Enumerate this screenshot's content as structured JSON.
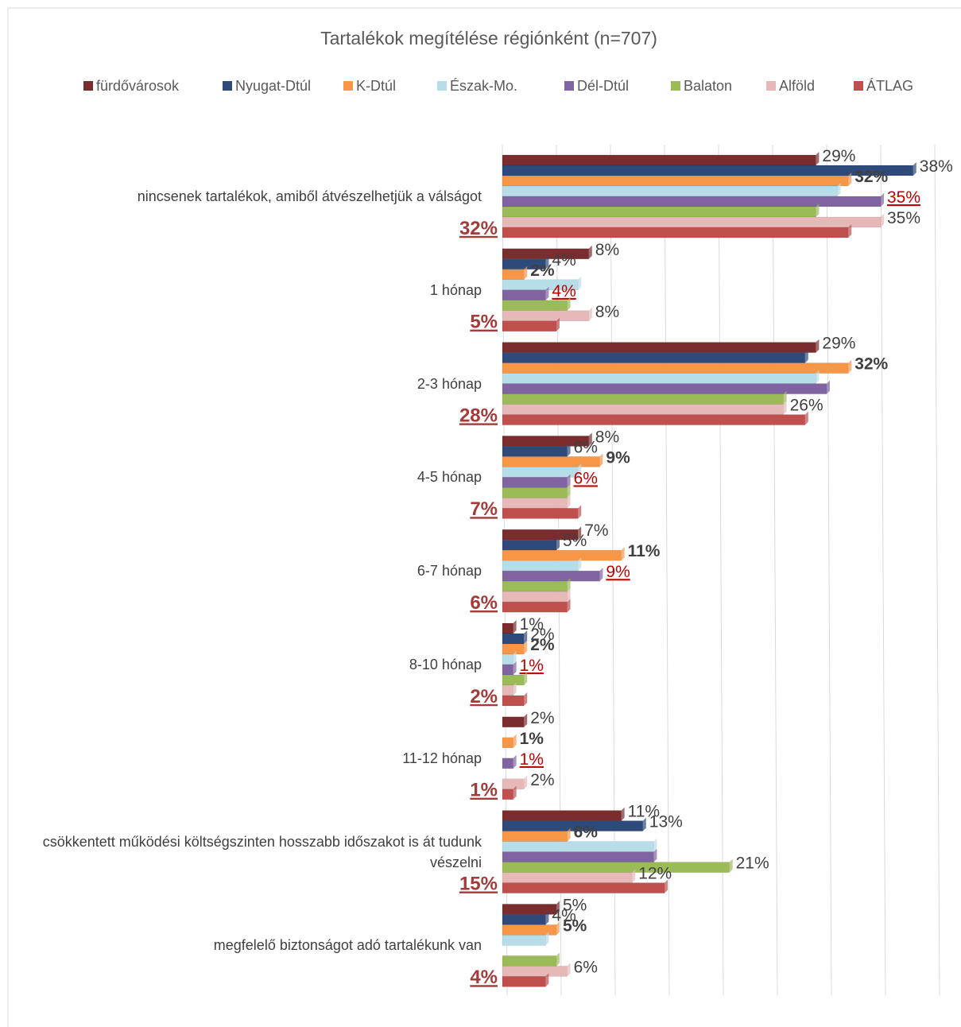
{
  "chart_data": {
    "type": "bar",
    "orientation": "horizontal",
    "title": "Tartalékok megítélése régiónként (n=707)",
    "categories": [
      "nincsenek tartalékok, amiből átvészelhetjük a válságot",
      "1 hónap",
      "2-3 hónap",
      "4-5 hónap",
      "6-7 hónap",
      "8-10 hónap",
      "11-12 hónap",
      "csökkentett működési költségszinten hosszabb időszakot is át tudunk vészelni",
      "megfelelő biztonságot adó tartalékunk van"
    ],
    "series": [
      {
        "name": "fürdővárosok",
        "color": "#7b2c2c",
        "values": [
          29,
          8,
          29,
          8,
          7,
          1,
          2,
          11,
          5
        ],
        "value_labels": [
          "29%",
          "8%",
          "29%",
          "8%",
          "7%",
          "1%",
          "2%",
          "11%",
          "5%"
        ]
      },
      {
        "name": "Nyugat-Dtúl",
        "color": "#2e4a7a",
        "values": [
          38,
          4,
          28,
          6,
          5,
          2,
          0,
          13,
          4
        ],
        "value_labels": [
          "38%",
          "4%",
          null,
          "6%",
          "5%",
          "2%",
          null,
          "13%",
          "4%"
        ]
      },
      {
        "name": "K-Dtúl",
        "color": "#f79646",
        "values": [
          32,
          2,
          32,
          9,
          11,
          2,
          1,
          6,
          5
        ],
        "value_labels": [
          "32%",
          "2%",
          "32%",
          "9%",
          "11%",
          "2%",
          "1%",
          "6%",
          "5%"
        ]
      },
      {
        "name": "Észak-Mo.",
        "color": "#b7dde8",
        "values": [
          31,
          7,
          29,
          7,
          7,
          1,
          0,
          14,
          4
        ],
        "value_labels": [
          null,
          null,
          null,
          null,
          null,
          null,
          null,
          null,
          null
        ]
      },
      {
        "name": "Dél-Dtúl",
        "color": "#8064a2",
        "values": [
          35,
          4,
          30,
          6,
          9,
          1,
          1,
          14,
          0
        ],
        "value_labels": [
          "35%",
          "4%",
          null,
          "6%",
          "9%",
          "1%",
          "1%",
          null,
          null
        ]
      },
      {
        "name": "Balaton",
        "color": "#9bbb59",
        "values": [
          29,
          6,
          26,
          6,
          6,
          2,
          0,
          21,
          5
        ],
        "value_labels": [
          null,
          null,
          null,
          null,
          null,
          null,
          null,
          "21%",
          null
        ]
      },
      {
        "name": "Alföld",
        "color": "#e6b9b8",
        "values": [
          35,
          8,
          26,
          6,
          6,
          1,
          2,
          12,
          6
        ],
        "value_labels": [
          "35%",
          "8%",
          "26%",
          null,
          null,
          null,
          "2%",
          "12%",
          "6%"
        ]
      },
      {
        "name": "ÁTLAG",
        "color": "#c0504d",
        "values": [
          32,
          5,
          28,
          7,
          6,
          2,
          1,
          15,
          4
        ],
        "value_labels": [
          "32%",
          "5%",
          "28%",
          "7%",
          "6%",
          "2%",
          "1%",
          "15%",
          "4%"
        ]
      }
    ],
    "xlim": [
      0,
      40
    ],
    "xticks": [
      0,
      5,
      10,
      15,
      20,
      25,
      30,
      35,
      40
    ],
    "grid": true,
    "legend": "top"
  }
}
